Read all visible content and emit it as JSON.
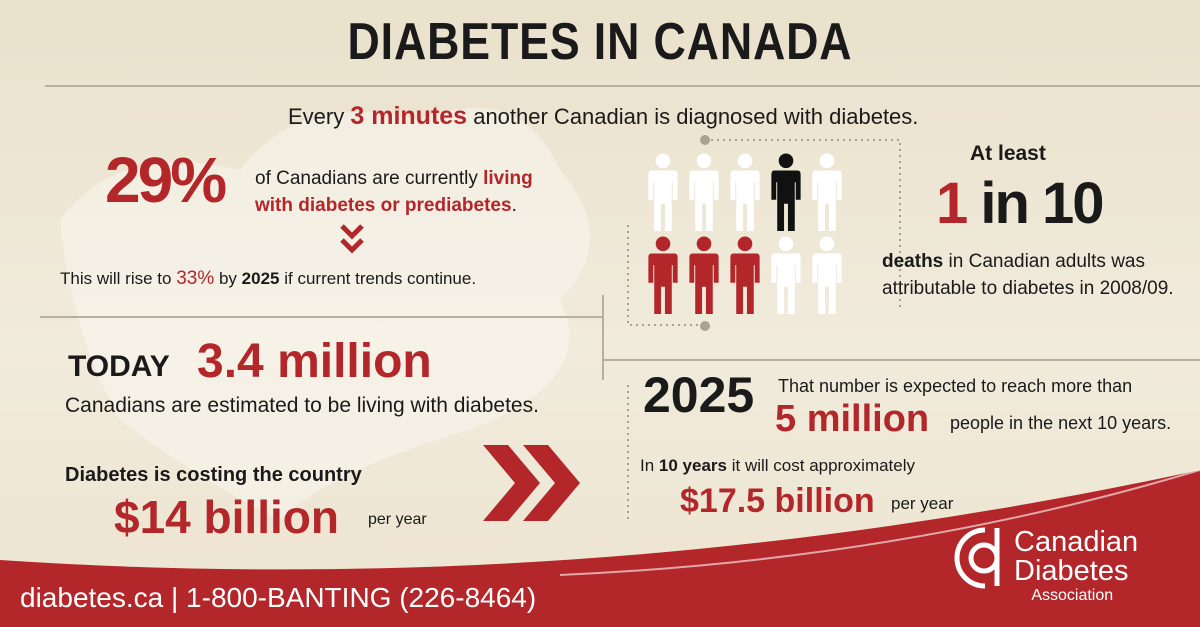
{
  "header": {
    "title": "DIABETES IN CANADA"
  },
  "intro": [
    "Every",
    "3 minutes",
    "another Canadian is diagnosed with diabetes."
  ],
  "prevalence": {
    "stat": "29%",
    "text": [
      "of Canadians are currently",
      "living",
      "with diabetes or prediabetes",
      "."
    ],
    "projection": [
      "This will rise to",
      "33%",
      "by",
      "2025",
      "if current trends continue."
    ]
  },
  "deaths": {
    "lead": "At least",
    "stat": [
      "1",
      "in 10"
    ],
    "text": [
      "deaths",
      "in Canadian adults was attributable to diabetes in 2008/09."
    ]
  },
  "today": {
    "label": "TODAY",
    "stat": "3.4 million",
    "text": "Canadians are estimated to be living with diabetes."
  },
  "cost": {
    "text": "Diabetes is costing the country",
    "stat": "$14 billion",
    "unit": "per year"
  },
  "future": {
    "label": "2025",
    "text": "That number is expected to reach more than",
    "stat": "5 million",
    "suffix": "people in the next 10 years."
  },
  "future_cost": {
    "text": [
      "In",
      "10 years",
      "it will cost approximately"
    ],
    "stat": "$17.5 billion",
    "unit": "per year"
  },
  "footer": {
    "contact": "diabetes.ca | 1-800-BANTING (226-8464)",
    "logo": [
      "Canadian",
      "Diabetes",
      "Association"
    ]
  }
}
